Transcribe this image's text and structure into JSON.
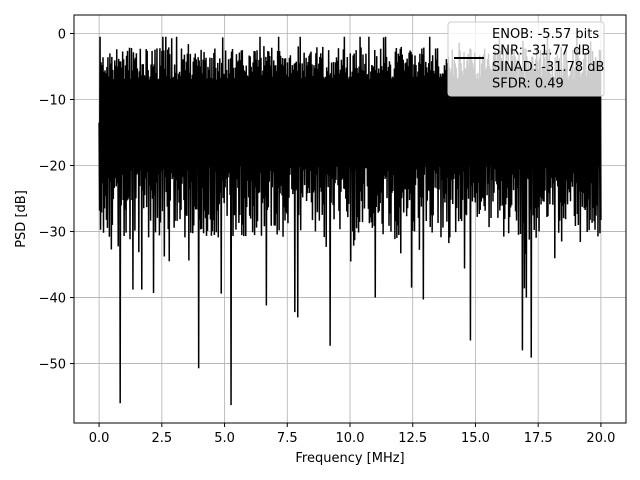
{
  "chart_data": {
    "type": "line",
    "xlabel": "Frequency [MHz]",
    "ylabel": "PSD [dB]",
    "xlim": [
      -1.0,
      21.0
    ],
    "ylim": [
      -59.0,
      2.8
    ],
    "xticks": [
      0.0,
      2.5,
      5.0,
      7.5,
      10.0,
      12.5,
      15.0,
      17.5,
      20.0
    ],
    "xtick_labels": [
      "0.0",
      "2.5",
      "5.0",
      "7.5",
      "10.0",
      "12.5",
      "15.0",
      "17.5",
      "20.0"
    ],
    "yticks": [
      0,
      -10,
      -20,
      -30,
      -40,
      -50
    ],
    "ytick_labels": [
      "0",
      "−10",
      "−20",
      "−30",
      "−40",
      "−50"
    ],
    "grid": true,
    "legend": {
      "placement": "top-right",
      "entries": [
        "ENOB: -5.57 bits",
        "SNR: -31.77 dB",
        "SINAD: -31.78 dB",
        "SFDR: 0.49"
      ]
    },
    "series": [
      {
        "color": "#000000",
        "x_range": [
          0.0,
          20.0
        ],
        "num_points": 1024,
        "noise_band_top_db": [
          -2,
          -7
        ],
        "noise_band_bottom_db": [
          -20,
          -31
        ],
        "max_db": -0.5,
        "notable_minima": [
          {
            "x": 0.85,
            "y": -56.0
          },
          {
            "x": 5.25,
            "y": -56.3
          },
          {
            "x": 3.95,
            "y": -50.7
          },
          {
            "x": 9.2,
            "y": -47.3
          },
          {
            "x": 14.8,
            "y": -46.5
          },
          {
            "x": 16.85,
            "y": -48.0
          },
          {
            "x": 17.2,
            "y": -49.1
          },
          {
            "x": 1.7,
            "y": -43.8
          },
          {
            "x": 7.9,
            "y": -43.0
          },
          {
            "x": 7.8,
            "y": -42.2
          },
          {
            "x": 6.65,
            "y": -41.2
          },
          {
            "x": 12.9,
            "y": -40.3
          },
          {
            "x": 17.0,
            "y": -40.0
          },
          {
            "x": 4.85,
            "y": -39.4
          },
          {
            "x": 2.15,
            "y": -39.3
          },
          {
            "x": 11.0,
            "y": -40.0
          },
          {
            "x": 1.35,
            "y": -38.8
          },
          {
            "x": 12.45,
            "y": -38.5
          },
          {
            "x": 16.95,
            "y": -38.6
          },
          {
            "x": 1.7,
            "y": -38.8
          }
        ]
      }
    ]
  }
}
